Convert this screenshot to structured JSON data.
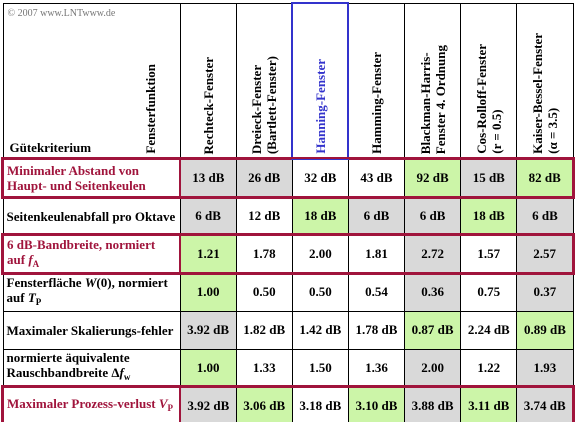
{
  "copyright": "© 2007 www.LNTwww.de",
  "corner": {
    "column_heading": "Fensterfunktion",
    "row_heading": "Gütekriterium"
  },
  "columns": [
    {
      "lines": [
        "Rechteck-Fenster"
      ],
      "color": "#000000"
    },
    {
      "lines": [
        "Dreieck-Fenster",
        "(Bartlett-Fenster)"
      ],
      "color": "#000000"
    },
    {
      "lines": [
        "Hanning-Fenster"
      ],
      "color": "#3333cc"
    },
    {
      "lines": [
        "Hamming-Fenster"
      ],
      "color": "#000000"
    },
    {
      "lines": [
        "Blackman-Harris-",
        "Fenster 4. Ordnung"
      ],
      "color": "#000000"
    },
    {
      "lines": [
        "Cos-Rolloff-Fenster",
        "(r = 0.5)"
      ],
      "color": "#000000"
    },
    {
      "lines": [
        "Kaiser-Bessel-Fenster",
        "(α = 3.5)"
      ],
      "color": "#000000"
    }
  ],
  "rows": [
    {
      "label": [
        {
          "t": "Minimaler Abstand von Haupt- und Seitenkeulen",
          "s": "n"
        }
      ],
      "color": "#a0143c",
      "values": [
        "13 dB",
        "26 dB",
        "32 dB",
        "43 dB",
        "92 dB",
        "15 dB",
        "82 dB"
      ],
      "shades": [
        "#d9d9d9",
        "#d9d9d9",
        "#ffffff",
        "#ffffff",
        "#ccf5a8",
        "#d9d9d9",
        "#ccf5a8"
      ]
    },
    {
      "label": [
        {
          "t": "Seitenkeulenabfall pro Oktave",
          "s": "n"
        }
      ],
      "color": "#000000",
      "values": [
        "6 dB",
        "12 dB",
        "18 dB",
        "6 dB",
        "6 dB",
        "18 dB",
        "6 dB"
      ],
      "shades": [
        "#d9d9d9",
        "#ffffff",
        "#ccf5a8",
        "#d9d9d9",
        "#d9d9d9",
        "#ccf5a8",
        "#d9d9d9"
      ]
    },
    {
      "label": [
        {
          "t": "6 dB-Bandbreite, normiert auf ",
          "s": "n"
        },
        {
          "t": "f",
          "s": "i"
        },
        {
          "t": "A",
          "s": "sub"
        }
      ],
      "color": "#a0143c",
      "values": [
        "1.21",
        "1.78",
        "2.00",
        "1.81",
        "2.72",
        "1.57",
        "2.57"
      ],
      "shades": [
        "#ccf5a8",
        "#ffffff",
        "#ffffff",
        "#ffffff",
        "#d9d9d9",
        "#ffffff",
        "#d9d9d9"
      ]
    },
    {
      "label": [
        {
          "t": "Fensterfläche ",
          "s": "n"
        },
        {
          "t": "W",
          "s": "i"
        },
        {
          "t": "(0), normiert auf ",
          "s": "n"
        },
        {
          "t": "T",
          "s": "i"
        },
        {
          "t": "P",
          "s": "sub"
        }
      ],
      "color": "#000000",
      "values": [
        "1.00",
        "0.50",
        "0.50",
        "0.54",
        "0.36",
        "0.75",
        "0.37"
      ],
      "shades": [
        "#ccf5a8",
        "#ffffff",
        "#ffffff",
        "#ffffff",
        "#d9d9d9",
        "#ffffff",
        "#d9d9d9"
      ]
    },
    {
      "label": [
        {
          "t": "Maximaler Skalierungs-fehler",
          "s": "n"
        }
      ],
      "color": "#000000",
      "values": [
        "3.92 dB",
        "1.82 dB",
        "1.42 dB",
        "1.78 dB",
        "0.87 dB",
        "2.24 dB",
        "0.89 dB"
      ],
      "shades": [
        "#d9d9d9",
        "#ffffff",
        "#ffffff",
        "#ffffff",
        "#ccf5a8",
        "#ffffff",
        "#ccf5a8"
      ]
    },
    {
      "label": [
        {
          "t": "normierte äquivalente Rauschbandbreite Δ",
          "s": "n"
        },
        {
          "t": "f",
          "s": "i"
        },
        {
          "t": "w",
          "s": "sub"
        }
      ],
      "color": "#000000",
      "values": [
        "1.00",
        "1.33",
        "1.50",
        "1.36",
        "2.00",
        "1.22",
        "1.93"
      ],
      "shades": [
        "#ccf5a8",
        "#ffffff",
        "#ffffff",
        "#ffffff",
        "#d9d9d9",
        "#ffffff",
        "#d9d9d9"
      ]
    },
    {
      "label": [
        {
          "t": "Maximaler Prozess-verlust ",
          "s": "n"
        },
        {
          "t": "V",
          "s": "i"
        },
        {
          "t": "P",
          "s": "sub"
        }
      ],
      "color": "#a0143c",
      "values": [
        "3.92 dB",
        "3.06 dB",
        "3.18 dB",
        "3.10 dB",
        "3.88 dB",
        "3.11 dB",
        "3.74 dB"
      ],
      "shades": [
        "#d9d9d9",
        "#ccf5a8",
        "#ffffff",
        "#ccf5a8",
        "#d9d9d9",
        "#ccf5a8",
        "#d9d9d9"
      ]
    }
  ]
}
